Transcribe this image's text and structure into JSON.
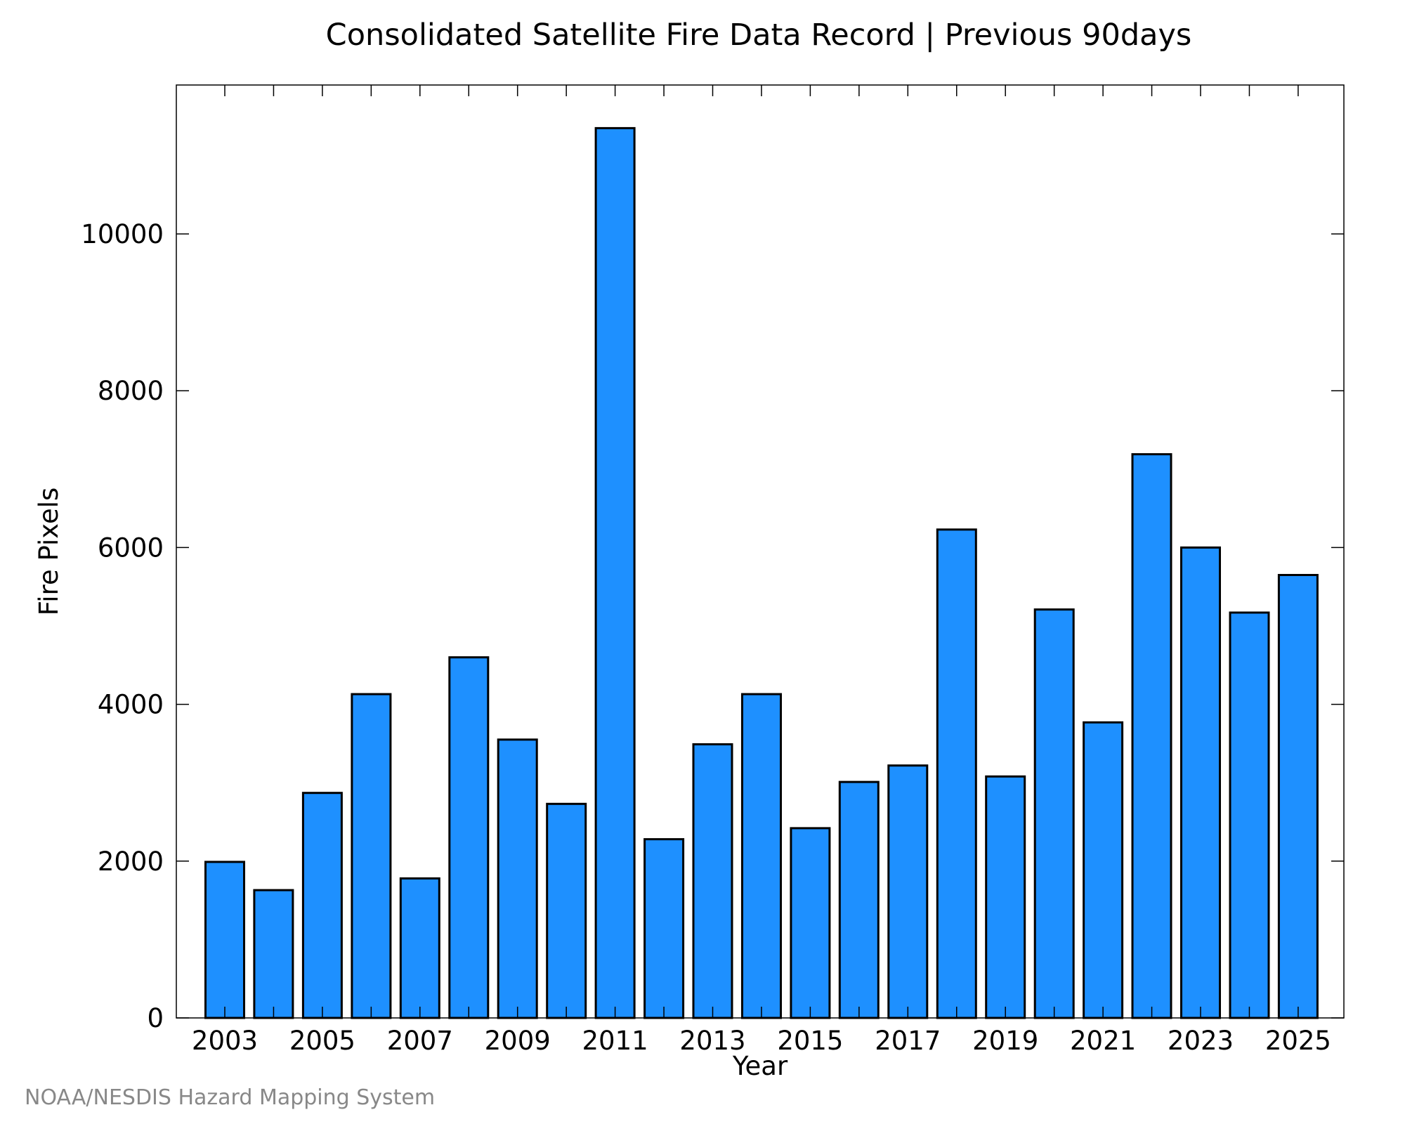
{
  "chart_data": {
    "type": "bar",
    "title": "Consolidated Satellite Fire Data Record | Previous 90days",
    "xlabel": "Year",
    "ylabel": "Fire Pixels",
    "categories": [
      "2003",
      "2004",
      "2005",
      "2006",
      "2007",
      "2008",
      "2009",
      "2010",
      "2011",
      "2012",
      "2013",
      "2014",
      "2015",
      "2016",
      "2017",
      "2018",
      "2019",
      "2020",
      "2021",
      "2022",
      "2023",
      "2024",
      "2025"
    ],
    "values": [
      1990,
      1630,
      2870,
      4130,
      1780,
      4600,
      3550,
      2730,
      11350,
      2280,
      3490,
      4130,
      2420,
      3010,
      3220,
      6230,
      3080,
      5210,
      3770,
      7190,
      6000,
      5170,
      5650
    ],
    "ylim": [
      0,
      11900
    ],
    "yticks": [
      0,
      2000,
      4000,
      6000,
      8000,
      10000
    ],
    "xtick_labels": [
      "2003",
      "2005",
      "2007",
      "2009",
      "2011",
      "2013",
      "2015",
      "2017",
      "2019",
      "2021",
      "2023",
      "2025"
    ],
    "bar_color": "#1E90FF",
    "edge_color": "#000000",
    "grid": false,
    "legend": "none"
  },
  "footer": {
    "credit": "NOAA/NESDIS Hazard Mapping System"
  }
}
